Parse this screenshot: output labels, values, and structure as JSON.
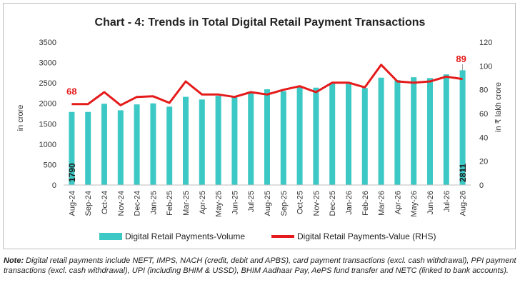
{
  "chart_data": {
    "type": "bar+line",
    "title": "Chart - 4: Trends in Total Digital Retail Payment Transactions",
    "categories": [
      "Aug-24",
      "Sep-24",
      "Oct-24",
      "Nov-24",
      "Dec-24",
      "Jan-25",
      "Feb-25",
      "Mar-25",
      "Apr-25",
      "May-25",
      "Jun-25",
      "Jul-25",
      "Aug-25",
      "Sep-25",
      "Oct-25",
      "Nov-25",
      "Dec-25",
      "Jan-26",
      "Feb-26",
      "Mar-26",
      "Apr-26",
      "May-26",
      "Jun-26",
      "Jul-26",
      "Aug-26"
    ],
    "ylabel": "in crore",
    "y2label": "in ₹ lakh crore",
    "ylim": [
      0,
      3500
    ],
    "y2lim": [
      0,
      120
    ],
    "yticks": [
      "0",
      "500",
      "1000",
      "1500",
      "2000",
      "2500",
      "3000",
      "3500"
    ],
    "y2ticks": [
      "0",
      "20",
      "40",
      "60",
      "80",
      "100",
      "120"
    ],
    "series": [
      {
        "name": "Digital Retail Payments-Volume",
        "type": "bar",
        "color": "#3cc8c4",
        "values": [
          1790,
          1790,
          1990,
          1830,
          1975,
          2000,
          1920,
          2160,
          2095,
          2185,
          2150,
          2255,
          2345,
          2300,
          2405,
          2385,
          2500,
          2480,
          2375,
          2630,
          2570,
          2640,
          2620,
          2710,
          2811
        ]
      },
      {
        "name": "Digital Retail Payments-Value (RHS)",
        "type": "line",
        "color": "#e51b1b",
        "values": [
          68,
          68,
          78,
          67,
          74,
          74.5,
          69,
          87,
          76,
          76,
          74,
          78,
          76,
          80,
          83,
          78,
          86,
          86,
          82,
          101,
          87,
          86,
          87,
          91,
          89
        ]
      }
    ],
    "annotations": {
      "line_first": "68",
      "line_last": "89",
      "bar_first": "1790",
      "bar_last": "2811"
    },
    "grid": false,
    "legend_position": "bottom"
  },
  "note": {
    "label": "Note:",
    "text": " Digital retail payments include NEFT, IMPS, NACH (credit, debit and APBS), card payment transactions (excl. cash withdrawal), PPI payment transactions (excl. cash withdrawal), UPI (including BHIM & USSD), BHIM Aadhaar Pay, AePS fund transfer and NETC (linked to bank accounts)."
  }
}
